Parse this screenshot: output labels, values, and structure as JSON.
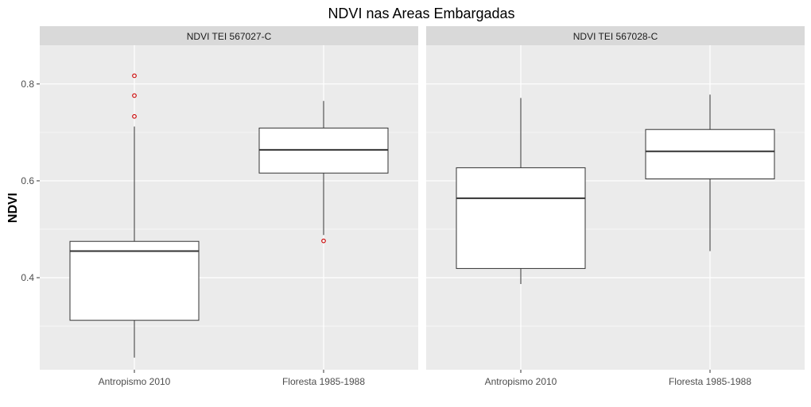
{
  "chart_data": {
    "type": "boxplot",
    "title": "NDVI nas Areas Embargadas",
    "ylabel": "NDVI",
    "xlabel": "",
    "ylim": [
      0.21,
      0.88
    ],
    "yticks": [
      0.4,
      0.6,
      0.8
    ],
    "ytick_labels": [
      "0.4",
      "0.6",
      "0.8"
    ],
    "categories": [
      "Antropismo 2010",
      "Floresta 1985-1988"
    ],
    "grid": true,
    "colors": {
      "panel_bg": "#ebebeb",
      "strip_bg": "#d9d9d9",
      "grid": "#ffffff",
      "box_fill": "#ffffff",
      "box_line": "#333333",
      "outlier": "#cc0000"
    },
    "panels": [
      {
        "strip": "NDVI TEI 567027-C",
        "boxes": [
          {
            "category": "Antropismo 2010",
            "whisker_low": 0.235,
            "q1": 0.312,
            "median": 0.455,
            "q3": 0.475,
            "whisker_high": 0.712,
            "outliers": [
              0.733,
              0.776,
              0.817
            ]
          },
          {
            "category": "Floresta 1985-1988",
            "whisker_low": 0.488,
            "q1": 0.616,
            "median": 0.664,
            "q3": 0.709,
            "whisker_high": 0.765,
            "outliers": [
              0.476
            ]
          }
        ]
      },
      {
        "strip": "NDVI TEI 567028-C",
        "boxes": [
          {
            "category": "Antropismo 2010",
            "whisker_low": 0.387,
            "q1": 0.419,
            "median": 0.564,
            "q3": 0.627,
            "whisker_high": 0.771,
            "outliers": []
          },
          {
            "category": "Floresta 1985-1988",
            "whisker_low": 0.455,
            "q1": 0.604,
            "median": 0.661,
            "q3": 0.706,
            "whisker_high": 0.778,
            "outliers": []
          }
        ]
      }
    ]
  }
}
